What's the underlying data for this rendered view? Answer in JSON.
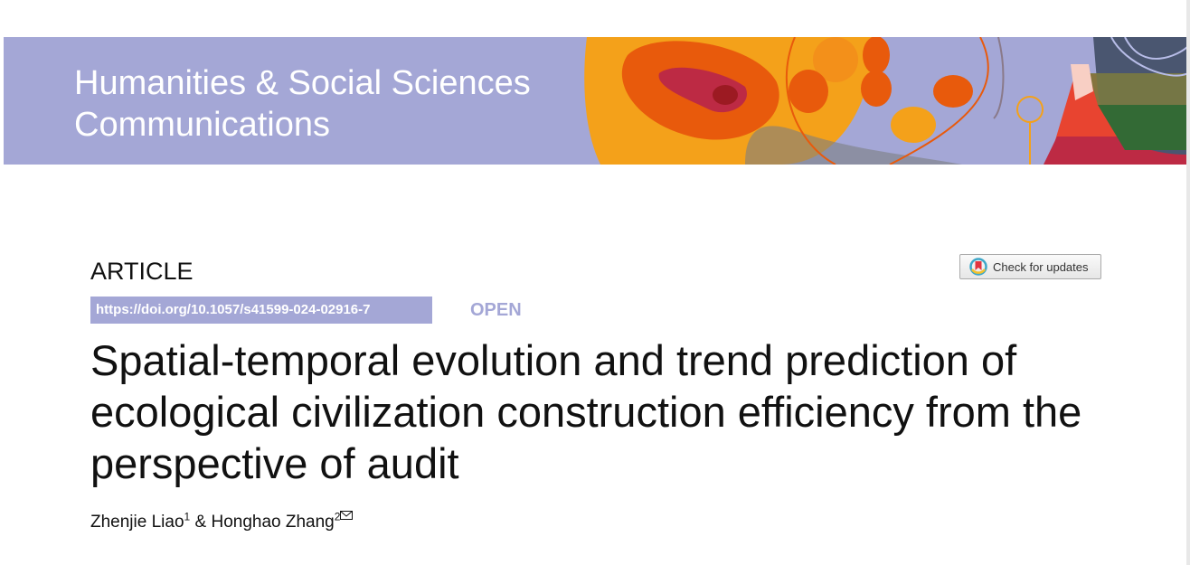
{
  "journal": {
    "line1": "Humanities & Social Sciences",
    "line2": "Communications"
  },
  "article_type": "ARTICLE",
  "doi": "https://doi.org/10.1057/s41599-024-02916-7",
  "open_label": "OPEN",
  "check_updates": {
    "label": "Check for updates",
    "icon": "crossmark-icon"
  },
  "title": "Spatial-temporal evolution and trend prediction of ecological civilization construction efficiency from the perspective of audit",
  "authors": [
    {
      "name": "Zhenjie Liao",
      "aff": "1"
    },
    {
      "name": "Honghao Zhang",
      "aff": "2"
    }
  ],
  "author_sep": "&",
  "colors": {
    "banner": "#a4a7d6",
    "orange": "#e85a0c",
    "yellow": "#f4a11a"
  }
}
